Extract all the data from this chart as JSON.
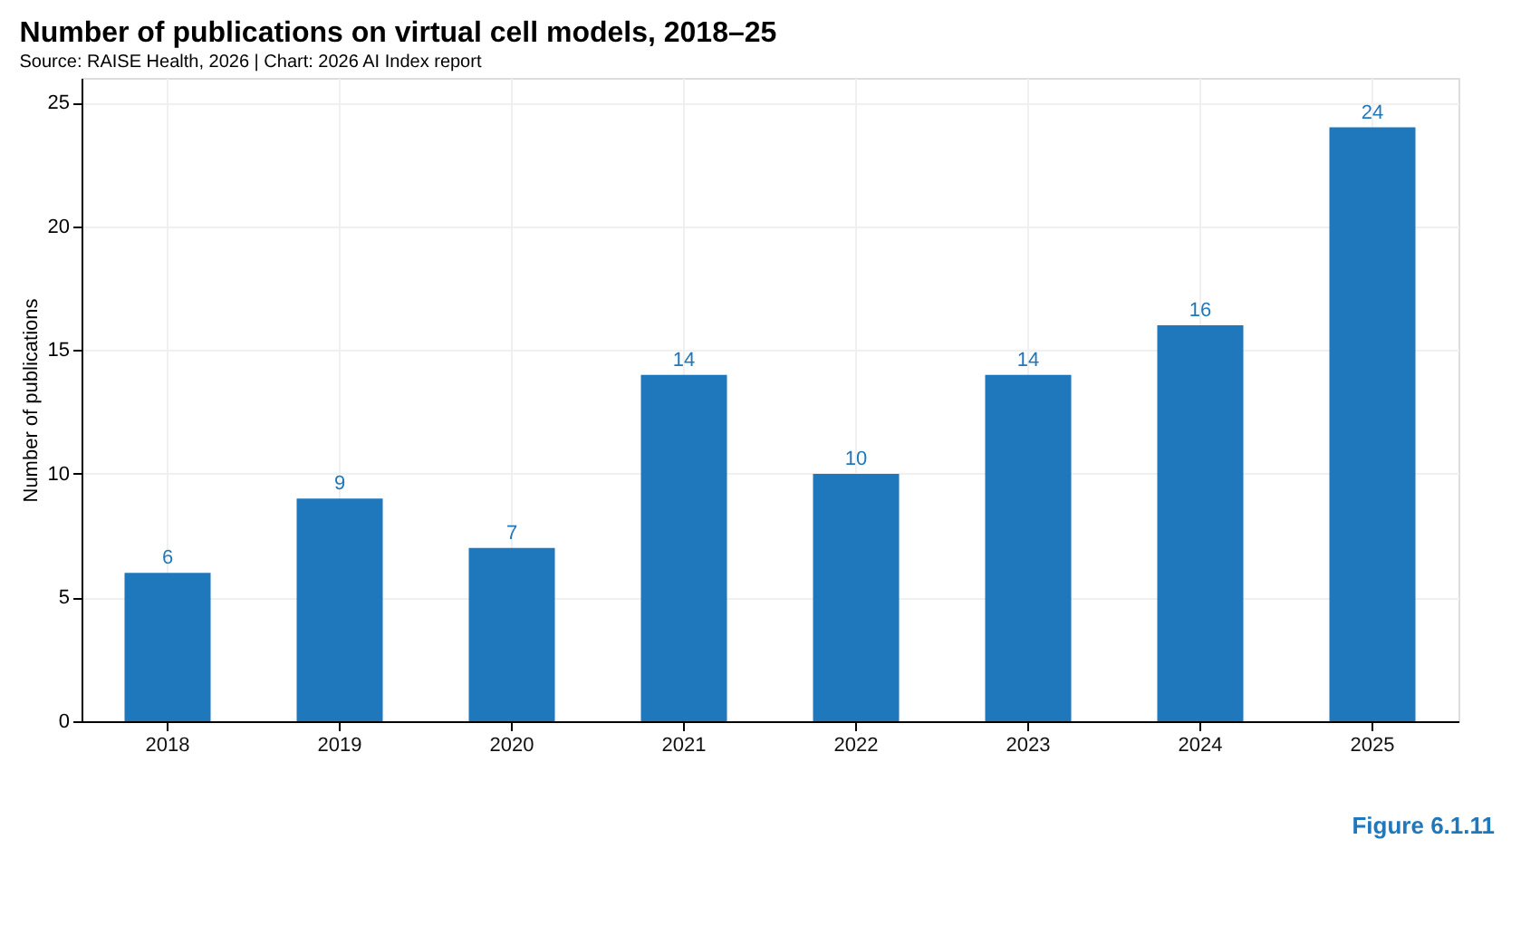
{
  "chart_data": {
    "type": "bar",
    "title": "Number of publications on virtual cell models, 2018–25",
    "subtitle": "Source: RAISE Health, 2026 | Chart: 2026 AI Index report",
    "ylabel": "Number of publications",
    "categories": [
      "2018",
      "2019",
      "2020",
      "2021",
      "2022",
      "2023",
      "2024",
      "2025"
    ],
    "values": [
      6,
      9,
      7,
      14,
      10,
      14,
      16,
      24
    ],
    "color": "#1f77bc",
    "ylim": [
      0,
      26
    ],
    "yticks": [
      0,
      5,
      10,
      15,
      20,
      25
    ],
    "grid": true,
    "data_labels": true,
    "annotations": [
      "Figure 6.1.11"
    ]
  }
}
